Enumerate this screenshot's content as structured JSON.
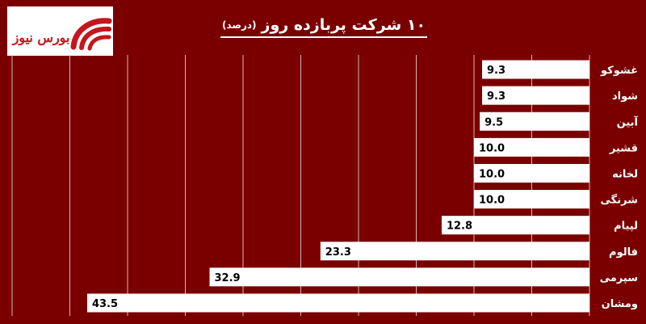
{
  "header": {
    "title": "۱۰ شرکت پربازده روز",
    "subtitle": "(درصد)",
    "logo_text": "بورس نیوز"
  },
  "colors": {
    "background": "#7a0000",
    "bar": "#ffffff",
    "logo_red": "#c4161c"
  },
  "chart_data": {
    "type": "bar",
    "orientation": "horizontal",
    "direction": "right-to-left",
    "title": "۱۰ شرکت پربازده روز",
    "subtitle": "(درصد)",
    "xlabel": "",
    "ylabel": "",
    "xlim": [
      0,
      50
    ],
    "grid": true,
    "categories": [
      "غشوکو",
      "شواد",
      "آبین",
      "قشیر",
      "لخانه",
      "شرنگی",
      "لپیام",
      "فالوم",
      "سپرمی",
      "ومشان"
    ],
    "values": [
      9.3,
      9.3,
      9.5,
      10.0,
      10.0,
      10.0,
      12.8,
      23.3,
      32.9,
      43.5
    ],
    "value_labels": [
      "9.3",
      "9.3",
      "9.5",
      "10.0",
      "10.0",
      "10.0",
      "12.8",
      "23.3",
      "32.9",
      "43.5"
    ]
  }
}
